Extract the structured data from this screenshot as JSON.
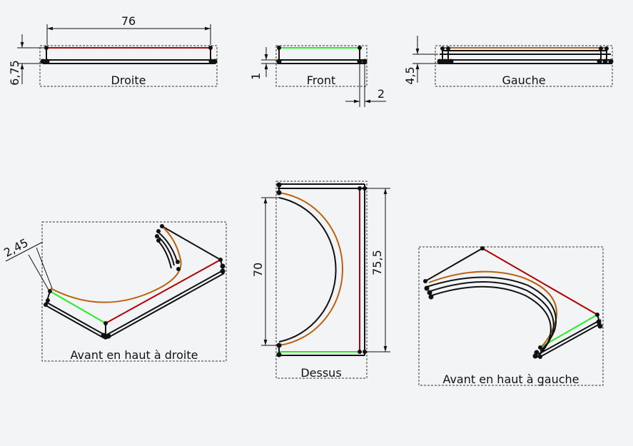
{
  "colors": {
    "red": "#b00000",
    "green": "#22ee22",
    "orange": "#b8620f",
    "black": "#111111",
    "frame": "#333333",
    "background": "#f3f4f6"
  },
  "views": {
    "droite": {
      "label": "Droite",
      "dim_width": "76",
      "dim_height": "6,75"
    },
    "front": {
      "label": "Front",
      "dim_height": "1",
      "dim_width": "2"
    },
    "gauche": {
      "label": "Gauche",
      "dim_height": "4,5"
    },
    "avant_droite": {
      "label": "Avant en haut à droite",
      "dim_radius": "2,45"
    },
    "dessus": {
      "label": "Dessus",
      "dim_inner": "70",
      "dim_outer": "75,5"
    },
    "avant_gauche": {
      "label": "Avant en haut à gauche"
    }
  }
}
